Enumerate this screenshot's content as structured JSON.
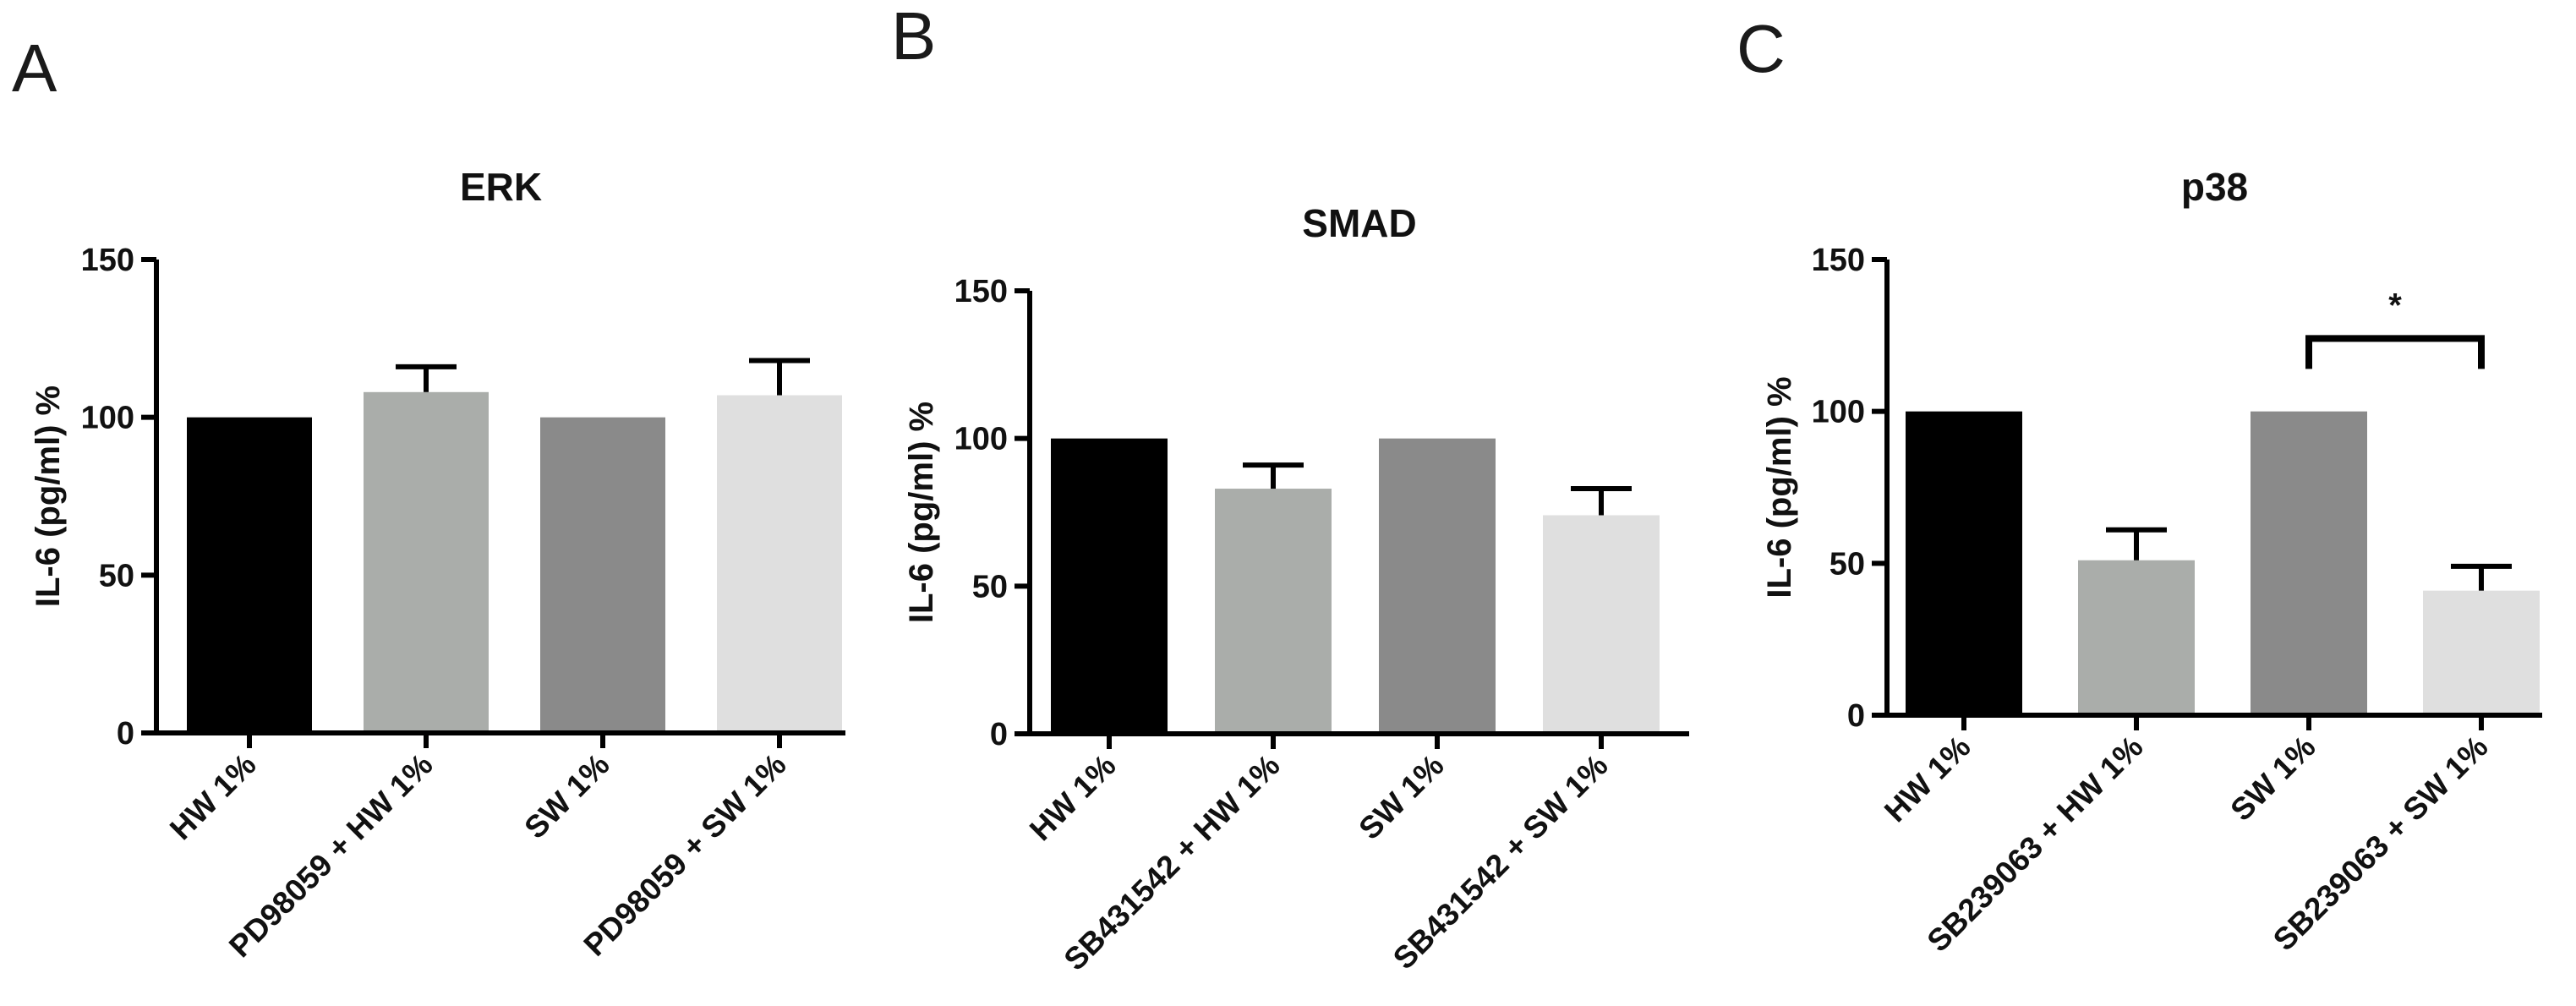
{
  "colors": {
    "bar_fills": [
      "#000000",
      "#aaadaa",
      "#8a8a8a",
      "#dfdfdf"
    ],
    "axis": "#000000",
    "text": "#111111"
  },
  "chart_data": [
    {
      "panel": "A",
      "type": "bar",
      "title": "ERK",
      "ylabel": "IL-6 (pg/ml) %",
      "xlabel": "",
      "ylim": [
        0,
        150
      ],
      "yticks": [
        0,
        50,
        100,
        150
      ],
      "categories": [
        "HW 1%",
        "PD98059 + HW 1%",
        "SW 1%",
        "PD98059 + SW 1%"
      ],
      "values": [
        100,
        108,
        100,
        107
      ],
      "errors": [
        0,
        8,
        0,
        11
      ],
      "significance": []
    },
    {
      "panel": "B",
      "type": "bar",
      "title": "SMAD",
      "ylabel": "IL-6 (pg/ml) %",
      "xlabel": "",
      "ylim": [
        0,
        150
      ],
      "yticks": [
        0,
        50,
        100,
        150
      ],
      "categories": [
        "HW 1%",
        "SB431542 + HW 1%",
        "SW 1%",
        "SB431542 + SW 1%"
      ],
      "values": [
        100,
        83,
        100,
        74
      ],
      "errors": [
        0,
        8,
        0,
        9
      ],
      "significance": []
    },
    {
      "panel": "C",
      "type": "bar",
      "title": "p38",
      "ylabel": "IL-6 (pg/ml) %",
      "xlabel": "",
      "ylim": [
        0,
        150
      ],
      "yticks": [
        0,
        50,
        100,
        150
      ],
      "categories": [
        "HW 1%",
        "SB239063 + HW 1%",
        "SW 1%",
        "SB239063 + SW 1%"
      ],
      "values": [
        100,
        51,
        100,
        41
      ],
      "errors": [
        0,
        10,
        0,
        8
      ],
      "significance": [
        {
          "from": 2,
          "to": 3,
          "label": "*",
          "level": 124
        }
      ]
    }
  ]
}
